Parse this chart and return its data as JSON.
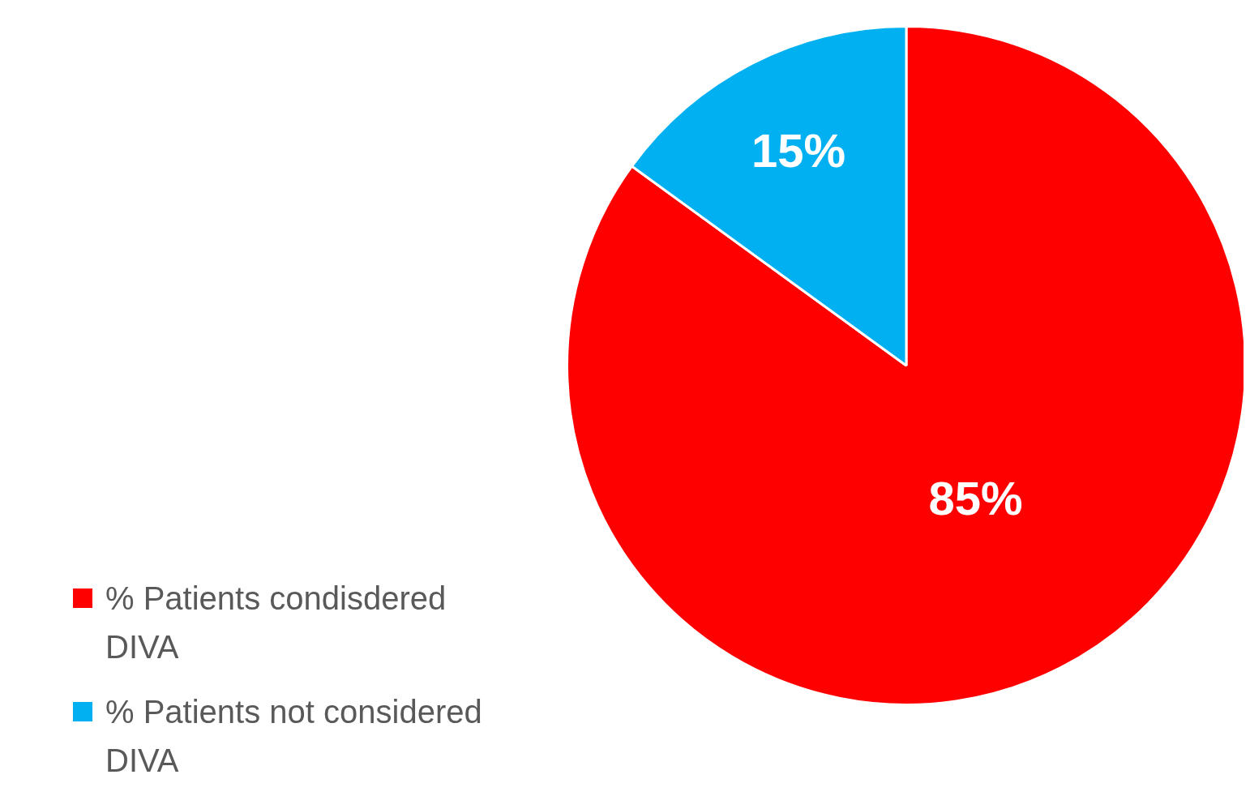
{
  "chart_data": {
    "type": "pie",
    "categories": [
      "% Patients condisdered DIVA",
      "% Patients not considered DIVA"
    ],
    "values": [
      85,
      15
    ],
    "colors": [
      "#ff0000",
      "#00b0f0"
    ],
    "value_labels": [
      "85%",
      "15%"
    ],
    "legend": "bottom left"
  }
}
